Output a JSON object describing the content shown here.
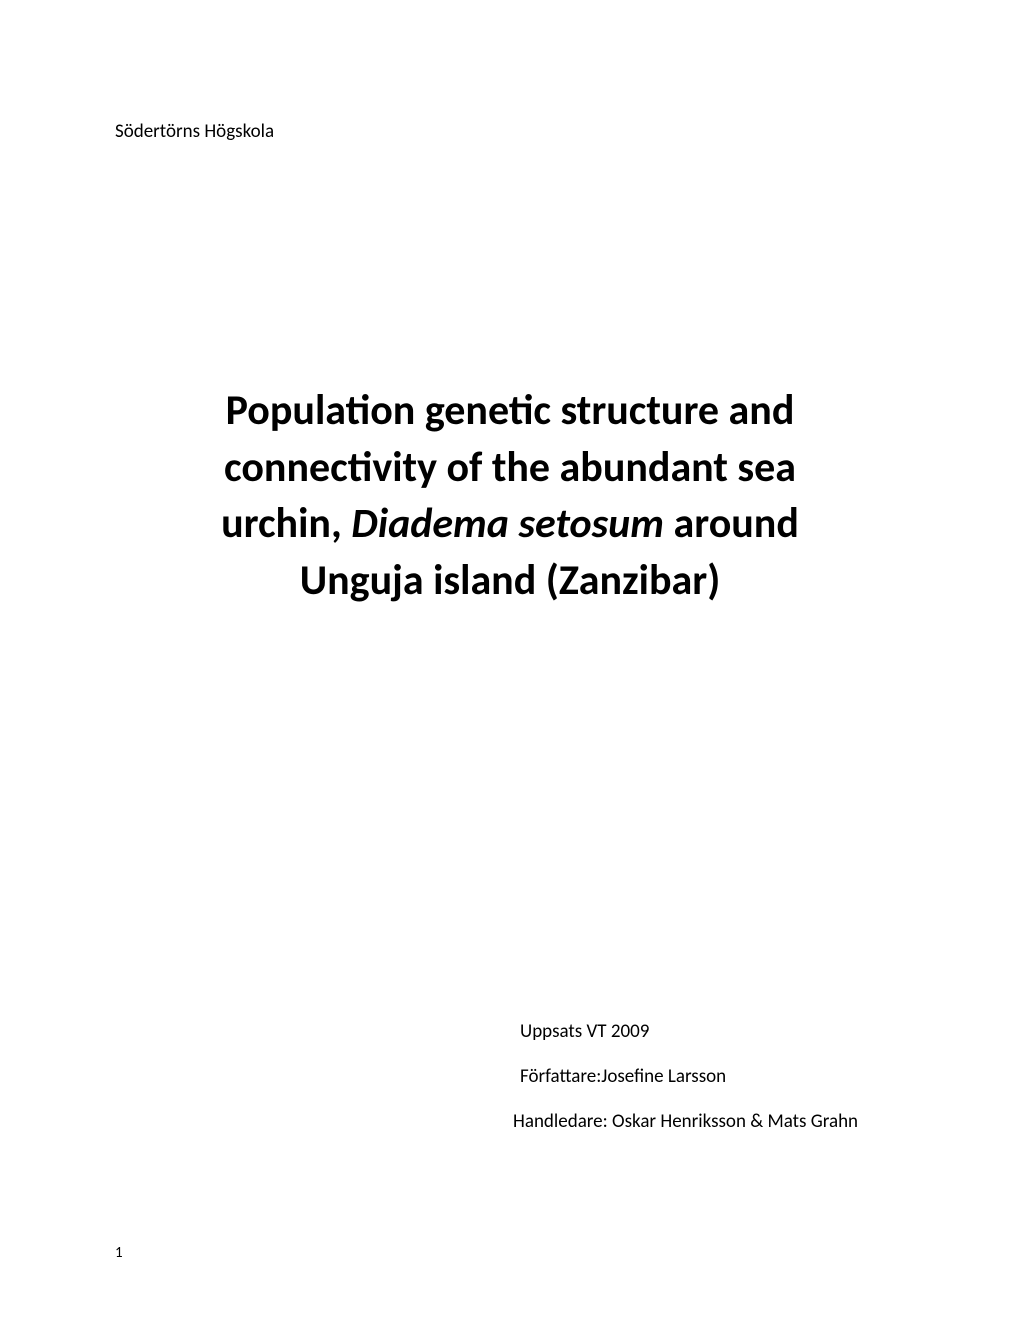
{
  "document": {
    "institution": "Södertörns Högskola",
    "title": {
      "line1": "Population genetic structure and",
      "line2": "connectivity of the abundant sea",
      "line3_part1": "urchin, ",
      "line3_italic": "Diadema setosum",
      "line3_part2": " around",
      "line4": "Unguja island (Zanzibar)"
    },
    "metadata": {
      "line1": "Uppsats VT 2009",
      "line2": "Författare:Josefine Larsson",
      "line3": "Handledare: Oskar Henriksson & Mats Grahn"
    },
    "page_number": "1",
    "styling": {
      "background_color": "#ffffff",
      "text_color": "#000000",
      "institution_fontsize": 19,
      "title_fontsize": 42,
      "title_fontweight": "bold",
      "metadata_fontsize": 19,
      "page_number_fontsize": 15,
      "font_family": "Calibri"
    }
  }
}
